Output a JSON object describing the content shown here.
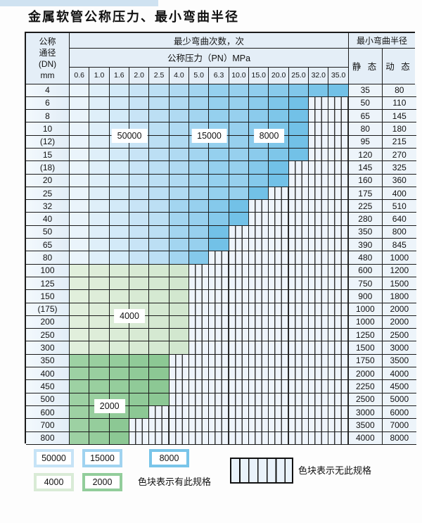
{
  "title": "金属软管公称压力、最小弯曲半径",
  "table": {
    "dn_header_lines": [
      "公称",
      "通径",
      "(DN)",
      "mm"
    ],
    "bend_cycles_header": "最少弯曲次数，次",
    "pressure_header": "公称压力（PN）MPa",
    "min_radius_header": "最小弯曲半径",
    "static_header": "静 态",
    "dynamic_header": "动 态",
    "pn_values": [
      "0.6",
      "1.0",
      "1.6",
      "2.0",
      "2.5",
      "4.0",
      "5.0",
      "6.3",
      "10.0",
      "15.0",
      "20.0",
      "25.0",
      "32.0",
      "35.0"
    ],
    "rows": [
      {
        "dn": "4",
        "s": "35",
        "d": "80",
        "runs": [
          [
            "b50",
            0,
            4
          ],
          [
            "b15",
            5,
            7
          ],
          [
            "b8",
            8,
            13
          ]
        ]
      },
      {
        "dn": "6",
        "s": "50",
        "d": "110",
        "runs": [
          [
            "b50",
            0,
            4
          ],
          [
            "b15",
            5,
            7
          ],
          [
            "b8",
            8,
            11
          ]
        ]
      },
      {
        "dn": "8",
        "s": "65",
        "d": "145",
        "runs": [
          [
            "b50",
            0,
            4
          ],
          [
            "b15",
            5,
            7
          ],
          [
            "b8",
            8,
            11
          ]
        ]
      },
      {
        "dn": "10",
        "s": "80",
        "d": "180",
        "runs": [
          [
            "b50",
            0,
            4
          ],
          [
            "b15",
            5,
            7
          ],
          [
            "b8",
            8,
            11
          ]
        ]
      },
      {
        "dn": "(12)",
        "s": "95",
        "d": "215",
        "runs": [
          [
            "b50",
            0,
            4
          ],
          [
            "b15",
            5,
            7
          ],
          [
            "b8",
            8,
            11
          ]
        ]
      },
      {
        "dn": "15",
        "s": "120",
        "d": "270",
        "runs": [
          [
            "b50",
            0,
            4
          ],
          [
            "b15",
            5,
            7
          ],
          [
            "b8",
            8,
            11
          ]
        ]
      },
      {
        "dn": "(18)",
        "s": "145",
        "d": "325",
        "runs": [
          [
            "b50",
            0,
            4
          ],
          [
            "b15",
            5,
            7
          ],
          [
            "b8",
            8,
            10
          ]
        ]
      },
      {
        "dn": "20",
        "s": "160",
        "d": "360",
        "runs": [
          [
            "b50",
            0,
            4
          ],
          [
            "b15",
            5,
            7
          ],
          [
            "b8",
            8,
            10
          ]
        ]
      },
      {
        "dn": "25",
        "s": "175",
        "d": "400",
        "runs": [
          [
            "b50",
            0,
            4
          ],
          [
            "b15",
            5,
            7
          ],
          [
            "b8",
            8,
            9
          ]
        ]
      },
      {
        "dn": "32",
        "s": "225",
        "d": "510",
        "runs": [
          [
            "b50",
            0,
            4
          ],
          [
            "b15",
            5,
            5
          ],
          [
            "b8",
            6,
            8
          ]
        ]
      },
      {
        "dn": "40",
        "s": "280",
        "d": "640",
        "runs": [
          [
            "b50",
            0,
            4
          ],
          [
            "b15",
            5,
            5
          ],
          [
            "b8",
            6,
            8
          ]
        ]
      },
      {
        "dn": "50",
        "s": "350",
        "d": "800",
        "runs": [
          [
            "b50",
            0,
            4
          ],
          [
            "b15",
            5,
            5
          ],
          [
            "b8",
            6,
            7
          ]
        ]
      },
      {
        "dn": "65",
        "s": "390",
        "d": "845",
        "runs": [
          [
            "b50",
            0,
            4
          ],
          [
            "b15",
            5,
            5
          ],
          [
            "b8",
            6,
            7
          ]
        ]
      },
      {
        "dn": "80",
        "s": "480",
        "d": "1000",
        "runs": [
          [
            "b50",
            0,
            4
          ],
          [
            "b15",
            5,
            5
          ],
          [
            "b8",
            6,
            6
          ]
        ]
      },
      {
        "dn": "100",
        "s": "600",
        "d": "1200",
        "runs": [
          [
            "g4",
            0,
            5
          ]
        ]
      },
      {
        "dn": "125",
        "s": "750",
        "d": "1500",
        "runs": [
          [
            "g4",
            0,
            5
          ]
        ]
      },
      {
        "dn": "150",
        "s": "900",
        "d": "1800",
        "runs": [
          [
            "g4",
            0,
            5
          ]
        ]
      },
      {
        "dn": "(175)",
        "s": "1000",
        "d": "2000",
        "runs": [
          [
            "g4",
            0,
            5
          ]
        ]
      },
      {
        "dn": "200",
        "s": "1000",
        "d": "2000",
        "runs": [
          [
            "g4",
            0,
            5
          ]
        ]
      },
      {
        "dn": "250",
        "s": "1250",
        "d": "2500",
        "runs": [
          [
            "g4",
            0,
            5
          ]
        ]
      },
      {
        "dn": "300",
        "s": "1500",
        "d": "3000",
        "runs": [
          [
            "g4",
            0,
            5
          ]
        ]
      },
      {
        "dn": "350",
        "s": "1750",
        "d": "3500",
        "runs": [
          [
            "g2",
            0,
            4
          ]
        ]
      },
      {
        "dn": "400",
        "s": "2000",
        "d": "4000",
        "runs": [
          [
            "g2",
            0,
            4
          ]
        ]
      },
      {
        "dn": "450",
        "s": "2250",
        "d": "4500",
        "runs": [
          [
            "g2",
            0,
            4
          ]
        ]
      },
      {
        "dn": "500",
        "s": "2500",
        "d": "5000",
        "runs": [
          [
            "g2",
            0,
            4
          ]
        ]
      },
      {
        "dn": "600",
        "s": "3000",
        "d": "6000",
        "runs": [
          [
            "g2",
            0,
            3
          ]
        ]
      },
      {
        "dn": "700",
        "s": "3500",
        "d": "7000",
        "runs": [
          [
            "g2",
            0,
            2
          ]
        ]
      },
      {
        "dn": "800",
        "s": "4000",
        "d": "8000",
        "runs": [
          [
            "g2",
            0,
            2
          ]
        ]
      }
    ],
    "region_labels": [
      {
        "text": "50000",
        "cols": [
          2,
          3
        ],
        "row": 4
      },
      {
        "text": "15000",
        "cols": [
          6,
          7
        ],
        "row": 4
      },
      {
        "text": "8000",
        "cols": [
          9,
          10
        ],
        "row": 4
      },
      {
        "text": "4000",
        "cols": [
          2,
          3
        ],
        "row": 18
      },
      {
        "text": "2000",
        "cols": [
          1,
          2
        ],
        "row": 25
      }
    ]
  },
  "legend": {
    "swatches": [
      {
        "label": "50000",
        "color": "#c6e3f6"
      },
      {
        "label": "15000",
        "color": "#a0d3f0"
      },
      {
        "label": "8000",
        "color": "#79c5e9"
      },
      {
        "label": "4000",
        "color": "#d9ebd6"
      },
      {
        "label": "2000",
        "color": "#92cd9b"
      }
    ],
    "has_spec_text": "色块表示有此规格",
    "no_spec_text": "色块表示无此规格"
  },
  "colors": {
    "b50_from": "#eaf4fb",
    "b50_to": "#bcdff4",
    "b15_from": "#b0daf2",
    "b15_to": "#95d0ee",
    "b8_from": "#97d0ee",
    "b8_to": "#72c1e7",
    "g4_from": "#e1efdc",
    "g4_to": "#d2e7cf",
    "g2_from": "#9dd1a3",
    "g2_to": "#8cc894",
    "header_bg": "#e4eef7",
    "dn_bg": "#e2edf7",
    "value_bg": "#edf4fa",
    "hatch_bg": "#eef4fb",
    "grid": "#1b1b1b",
    "top_strip": "#cfe2f1"
  }
}
